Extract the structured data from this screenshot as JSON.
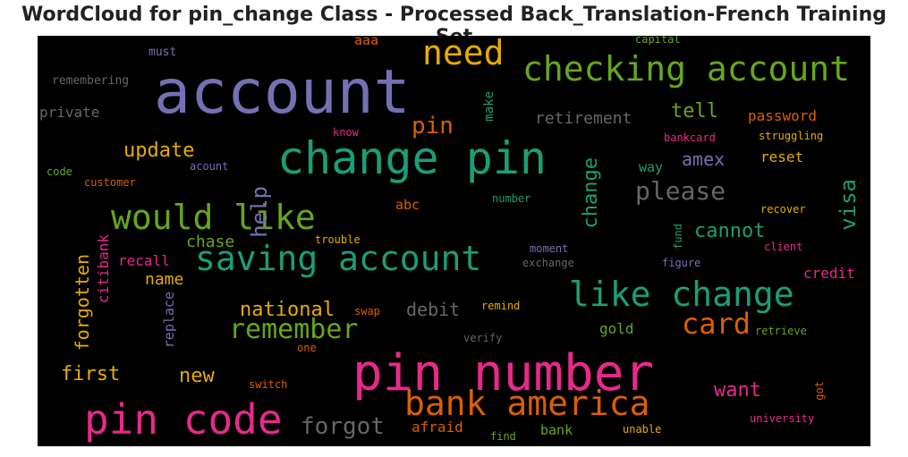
{
  "title": "WordCloud for pin_change Class - Processed Back_Translation-French Training Set",
  "chart_data": {
    "type": "wordcloud",
    "background": "#000000",
    "words": [
      {
        "text": "account",
        "size": 68,
        "color": "#7570b3"
      },
      {
        "text": "change pin",
        "size": 50,
        "color": "#1b9e77"
      },
      {
        "text": "pin number",
        "size": 56,
        "color": "#e7298a"
      },
      {
        "text": "pin code",
        "size": 46,
        "color": "#e7298a"
      },
      {
        "text": "checking account",
        "size": 38,
        "color": "#66a61e"
      },
      {
        "text": "saving account",
        "size": 38,
        "color": "#1b9e77"
      },
      {
        "text": "would like",
        "size": 38,
        "color": "#66a61e"
      },
      {
        "text": "like change",
        "size": 38,
        "color": "#1b9e77"
      },
      {
        "text": "bank america",
        "size": 38,
        "color": "#d95f02"
      },
      {
        "text": "need",
        "size": 38,
        "color": "#e6ab02"
      },
      {
        "text": "card",
        "size": 32,
        "color": "#d95f02"
      },
      {
        "text": "remember",
        "size": 30,
        "color": "#66a61e"
      },
      {
        "text": "please",
        "size": 28,
        "color": "#666666"
      },
      {
        "text": "forgot",
        "size": 26,
        "color": "#666666"
      },
      {
        "text": "pin",
        "size": 26,
        "color": "#d95f02"
      },
      {
        "text": "help",
        "size": 24,
        "color": "#7570b3"
      },
      {
        "text": "visa",
        "size": 24,
        "color": "#1b9e77"
      },
      {
        "text": "want",
        "size": 22,
        "color": "#e7298a"
      },
      {
        "text": "change",
        "size": 22,
        "color": "#1b9e77"
      },
      {
        "text": "update",
        "size": 22,
        "color": "#e6ab02"
      },
      {
        "text": "tell",
        "size": 22,
        "color": "#66a61e"
      },
      {
        "text": "cannot",
        "size": 22,
        "color": "#1b9e77"
      },
      {
        "text": "national",
        "size": 22,
        "color": "#e6ab02"
      },
      {
        "text": "debit",
        "size": 20,
        "color": "#666666"
      },
      {
        "text": "first",
        "size": 22,
        "color": "#e6ab02"
      },
      {
        "text": "new",
        "size": 22,
        "color": "#e6ab02"
      },
      {
        "text": "forgotten",
        "size": 20,
        "color": "#e6ab02"
      },
      {
        "text": "retirement",
        "size": 18,
        "color": "#666666"
      },
      {
        "text": "amex",
        "size": 20,
        "color": "#7570b3"
      },
      {
        "text": "chase",
        "size": 18,
        "color": "#66a61e"
      },
      {
        "text": "name",
        "size": 18,
        "color": "#e6ab02"
      },
      {
        "text": "recall",
        "size": 16,
        "color": "#e7298a"
      },
      {
        "text": "citibank",
        "size": 16,
        "color": "#e7298a"
      },
      {
        "text": "private",
        "size": 16,
        "color": "#666666"
      },
      {
        "text": "password",
        "size": 16,
        "color": "#d95f02"
      },
      {
        "text": "reset",
        "size": 16,
        "color": "#e6ab02"
      },
      {
        "text": "credit",
        "size": 16,
        "color": "#e7298a"
      },
      {
        "text": "gold",
        "size": 16,
        "color": "#66a61e"
      },
      {
        "text": "way",
        "size": 15,
        "color": "#1b9e77"
      },
      {
        "text": "abc",
        "size": 15,
        "color": "#d95f02"
      },
      {
        "text": "aaa",
        "size": 15,
        "color": "#d95f02"
      },
      {
        "text": "replace",
        "size": 15,
        "color": "#7570b3"
      },
      {
        "text": "afraid",
        "size": 16,
        "color": "#d95f02"
      },
      {
        "text": "bank",
        "size": 15,
        "color": "#66a61e"
      },
      {
        "text": "make",
        "size": 14,
        "color": "#1b9e77"
      },
      {
        "text": "remembering",
        "size": 13,
        "color": "#666666"
      },
      {
        "text": "must",
        "size": 13,
        "color": "#7570b3"
      },
      {
        "text": "know",
        "size": 12,
        "color": "#e7298a"
      },
      {
        "text": "acount",
        "size": 12,
        "color": "#7570b3"
      },
      {
        "text": "code",
        "size": 12,
        "color": "#66a61e"
      },
      {
        "text": "customer",
        "size": 12,
        "color": "#d95f02"
      },
      {
        "text": "capital",
        "size": 12,
        "color": "#66a61e"
      },
      {
        "text": "bankcard",
        "size": 12,
        "color": "#e7298a"
      },
      {
        "text": "struggling",
        "size": 12,
        "color": "#e6ab02"
      },
      {
        "text": "number",
        "size": 12,
        "color": "#1b9e77"
      },
      {
        "text": "recover",
        "size": 12,
        "color": "#e6ab02"
      },
      {
        "text": "trouble",
        "size": 12,
        "color": "#e6ab02"
      },
      {
        "text": "fund",
        "size": 12,
        "color": "#1b9e77"
      },
      {
        "text": "client",
        "size": 12,
        "color": "#e7298a"
      },
      {
        "text": "moment",
        "size": 12,
        "color": "#7570b3"
      },
      {
        "text": "exchange",
        "size": 12,
        "color": "#666666"
      },
      {
        "text": "figure",
        "size": 12,
        "color": "#7570b3"
      },
      {
        "text": "swap",
        "size": 12,
        "color": "#d95f02"
      },
      {
        "text": "remind",
        "size": 12,
        "color": "#e6ab02"
      },
      {
        "text": "one",
        "size": 12,
        "color": "#d95f02"
      },
      {
        "text": "verify",
        "size": 12,
        "color": "#666666"
      },
      {
        "text": "retrieve",
        "size": 12,
        "color": "#66a61e"
      },
      {
        "text": "switch",
        "size": 12,
        "color": "#d95f02"
      },
      {
        "text": "got",
        "size": 12,
        "color": "#d95f02"
      },
      {
        "text": "university",
        "size": 12,
        "color": "#e7298a"
      },
      {
        "text": "find",
        "size": 12,
        "color": "#66a61e"
      },
      {
        "text": "unable",
        "size": 12,
        "color": "#e6ab02"
      }
    ]
  }
}
